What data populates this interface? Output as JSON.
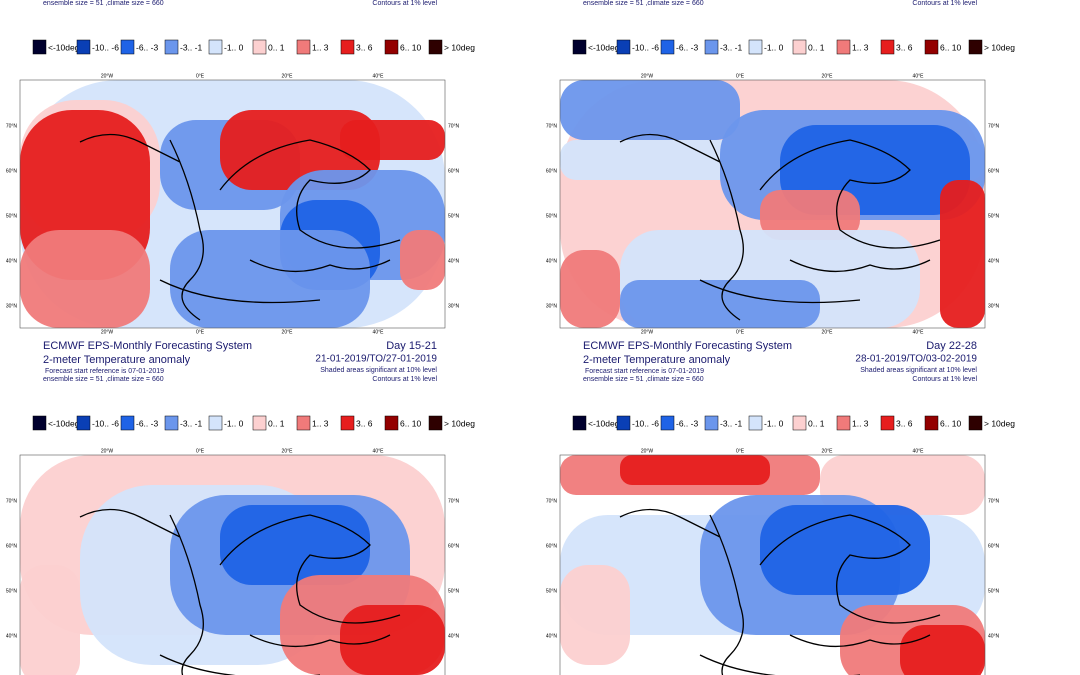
{
  "legend": [
    "<-10deg",
    "-10.. -6",
    "-6.. -3",
    "-3.. -1",
    "-1.. 0",
    "0.. 1",
    "1.. 3",
    "3.. 6",
    "6.. 10",
    "> 10deg"
  ],
  "map_axes": {
    "lon": [
      "20°W",
      "0°E",
      "20°E",
      "40°E"
    ],
    "lat": [
      "70°N",
      "60°N",
      "50°N",
      "40°N",
      "30°N"
    ]
  },
  "top_row_fragments": [
    {
      "left": "ensemble size = 51 ,climate size = 660",
      "right": "Contours at 1% level"
    },
    {
      "left": "ensemble size = 51 ,climate size = 660",
      "right": "Contours at 1% level"
    }
  ],
  "panels": [
    {
      "system": "ECMWF EPS-Monthly Forecasting System",
      "variable": "2-meter Temperature anomaly",
      "start": "Forecast start reference is 07-01-2019",
      "ensemble": "ensemble size = 51 ,climate size = 660",
      "day": "Day 15-21",
      "period": "21-01-2019/TO/27-01-2019",
      "shaded": "Shaded areas significant at 10% level",
      "contours": "Contours at 1% level"
    },
    {
      "system": "ECMWF EPS-Monthly Forecasting System",
      "variable": "2-meter Temperature anomaly",
      "start": "Forecast start reference is 07-01-2019",
      "ensemble": "ensemble size = 51 ,climate size = 660",
      "day": "Day 22-28",
      "period": "28-01-2019/TO/03-02-2019",
      "shaded": "Shaded areas significant at 10% level",
      "contours": "Contours at 1% level"
    }
  ]
}
